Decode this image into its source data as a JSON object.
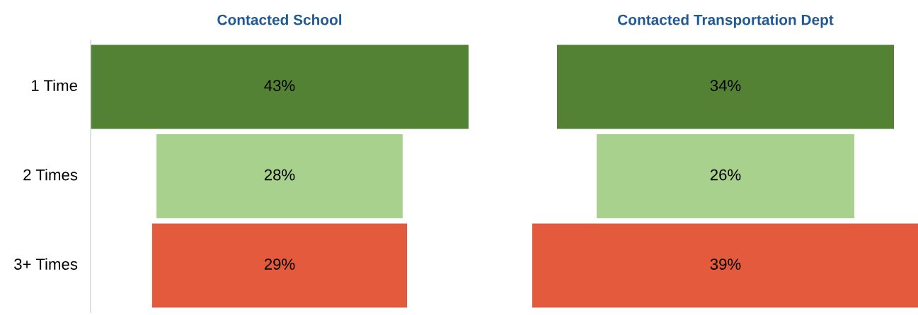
{
  "chart_data": [
    {
      "type": "other",
      "title": "Contacted School",
      "categories": [
        "1 Time",
        "2 Times",
        "3+ Times"
      ],
      "values": [
        43,
        28,
        29
      ],
      "colors": [
        "#548235",
        "#a9d18e",
        "#e35b3c"
      ],
      "data_labels": true,
      "value_labels": [
        "43%",
        "28%",
        "29%"
      ]
    },
    {
      "type": "other",
      "title": "Contacted Transportation Dept",
      "categories": [
        null,
        null,
        null
      ],
      "values": [
        34,
        26,
        39
      ],
      "colors": [
        "#548235",
        "#a9d18e",
        "#e35b3c"
      ],
      "data_labels": true,
      "value_labels": [
        "34%",
        "26%",
        "39%"
      ]
    }
  ]
}
